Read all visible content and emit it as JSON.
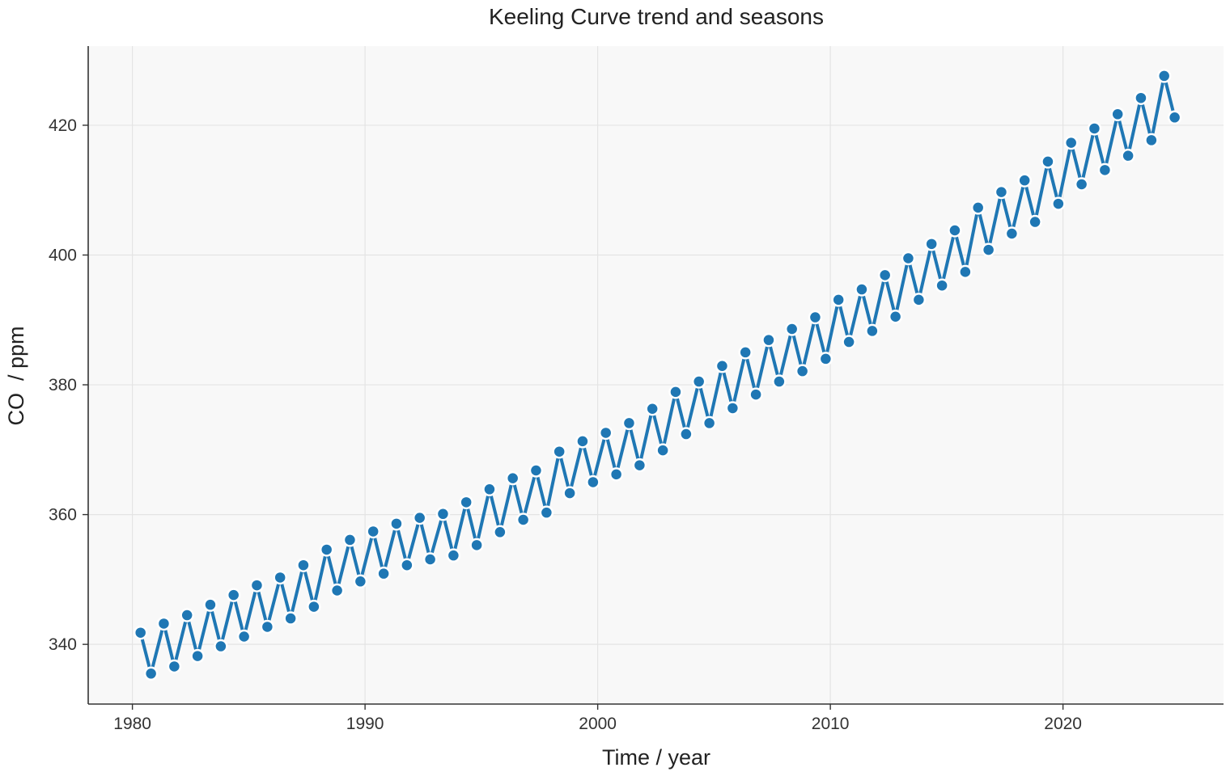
{
  "chart_data": {
    "type": "line",
    "title": "Keeling Curve trend and seasons",
    "xlabel": "Time / year",
    "ylabel": "CO  / ppm",
    "xlim": [
      1978.1,
      2026.9
    ],
    "ylim": [
      330.8,
      432.2
    ],
    "xticks": [
      1980,
      1990,
      2000,
      2010,
      2020
    ],
    "yticks": [
      340,
      360,
      380,
      400,
      420
    ],
    "grid": true,
    "legend": "none",
    "colors": {
      "series": "#1f77b4",
      "plot_background": "#f8f8f8",
      "grid": "#e4e4e4"
    },
    "series": [
      {
        "x": [
          1980.35,
          1980.8,
          1981.35,
          1981.8,
          1982.35,
          1982.8,
          1983.35,
          1983.8,
          1984.35,
          1984.8,
          1985.35,
          1985.8,
          1986.35,
          1986.8,
          1987.35,
          1987.8,
          1988.35,
          1988.8,
          1989.35,
          1989.8,
          1990.35,
          1990.8,
          1991.35,
          1991.8,
          1992.35,
          1992.8,
          1993.35,
          1993.8,
          1994.35,
          1994.8,
          1995.35,
          1995.8,
          1996.35,
          1996.8,
          1997.35,
          1997.8,
          1998.35,
          1998.8,
          1999.35,
          1999.8,
          2000.35,
          2000.8,
          2001.35,
          2001.8,
          2002.35,
          2002.8,
          2003.35,
          2003.8,
          2004.35,
          2004.8,
          2005.35,
          2005.8,
          2006.35,
          2006.8,
          2007.35,
          2007.8,
          2008.35,
          2008.8,
          2009.35,
          2009.8,
          2010.35,
          2010.8,
          2011.35,
          2011.8,
          2012.35,
          2012.8,
          2013.35,
          2013.8,
          2014.35,
          2014.8,
          2015.35,
          2015.8,
          2016.35,
          2016.8,
          2017.35,
          2017.8,
          2018.35,
          2018.8,
          2019.35,
          2019.8,
          2020.35,
          2020.8,
          2021.35,
          2021.8,
          2022.35,
          2022.8,
          2023.35,
          2023.8,
          2024.35,
          2024.8
        ],
        "values": [
          341.8,
          335.5,
          343.2,
          336.6,
          344.5,
          338.2,
          346.1,
          339.7,
          347.6,
          341.2,
          349.1,
          342.7,
          350.3,
          344.0,
          352.2,
          345.8,
          354.6,
          348.3,
          356.1,
          349.7,
          357.4,
          350.9,
          358.6,
          352.2,
          359.5,
          353.1,
          360.1,
          353.7,
          361.9,
          355.3,
          363.9,
          357.3,
          365.6,
          359.2,
          366.8,
          360.3,
          369.7,
          363.3,
          371.3,
          365.0,
          372.6,
          366.2,
          374.1,
          367.6,
          376.3,
          369.9,
          378.9,
          372.4,
          380.5,
          374.1,
          382.9,
          376.4,
          385.0,
          378.5,
          386.9,
          380.5,
          388.6,
          382.1,
          390.4,
          384.0,
          393.1,
          386.6,
          394.7,
          388.3,
          396.9,
          390.5,
          399.5,
          393.1,
          401.7,
          395.3,
          403.8,
          397.4,
          407.3,
          400.8,
          409.7,
          403.3,
          411.5,
          405.1,
          414.4,
          407.9,
          417.3,
          410.9,
          419.5,
          413.1,
          421.7,
          415.3,
          424.2,
          417.7,
          427.6,
          421.2
        ]
      }
    ]
  }
}
